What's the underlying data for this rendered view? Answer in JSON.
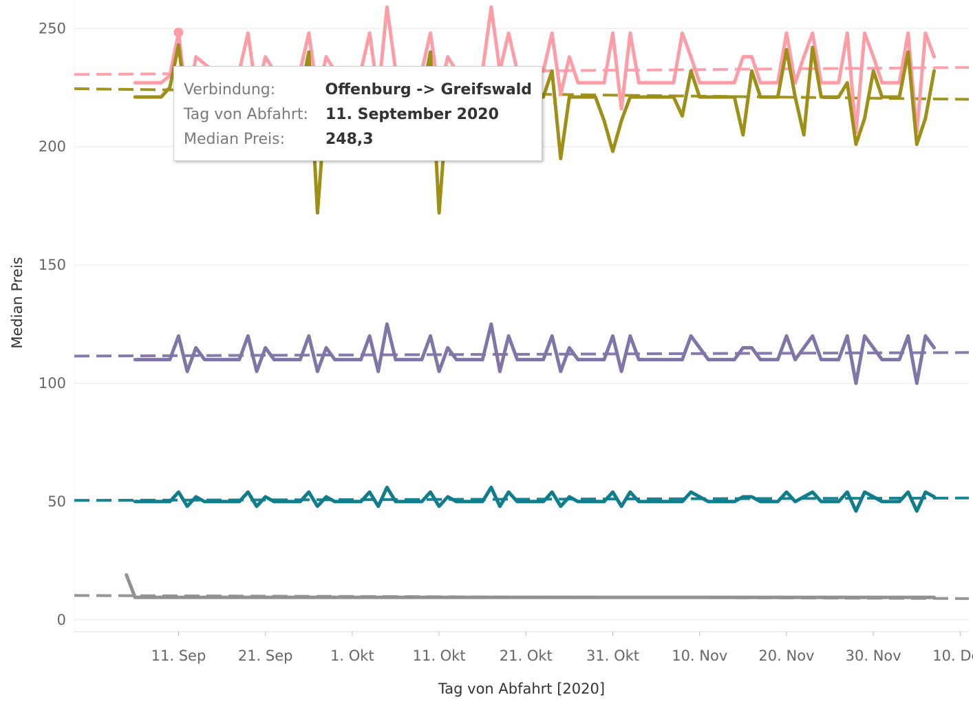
{
  "chart_data": {
    "type": "line",
    "xlabel": "Tag von Abfahrt [2020]",
    "ylabel": "Median Preis",
    "ylim": [
      -5,
      262
    ],
    "yticks": [
      0,
      50,
      100,
      150,
      200,
      250
    ],
    "ytick_labels": [
      "0",
      "50",
      "100",
      "150",
      "200",
      "250"
    ],
    "x_domain": [
      "2020-08-30",
      "2020-12-11"
    ],
    "xticks": [
      "2020-09-11",
      "2020-09-21",
      "2020-10-01",
      "2020-10-11",
      "2020-10-21",
      "2020-10-31",
      "2020-11-10",
      "2020-11-20",
      "2020-11-30",
      "2020-12-10"
    ],
    "xtick_labels": [
      "11. Sep",
      "21. Sep",
      "1. Okt",
      "11. Okt",
      "21. Okt",
      "31. Okt",
      "10. Nov",
      "20. Nov",
      "30. Nov",
      "10. Dez"
    ],
    "grid": true,
    "legend": "none",
    "series": [
      {
        "color": "#ff9da7",
        "points": [
          [
            "2020-09-06",
            227
          ],
          [
            "2020-09-09",
            227
          ],
          [
            "2020-09-10",
            230
          ],
          [
            "2020-09-11",
            248.3
          ],
          [
            "2020-09-12",
            216
          ],
          [
            "2020-09-13",
            238
          ],
          [
            "2020-09-15",
            232
          ],
          [
            "2020-09-18",
            232
          ],
          [
            "2020-09-19",
            248
          ],
          [
            "2020-09-20",
            222
          ],
          [
            "2020-09-21",
            238
          ],
          [
            "2020-09-22",
            232
          ],
          [
            "2020-09-25",
            232
          ],
          [
            "2020-09-26",
            248
          ],
          [
            "2020-09-27",
            222
          ],
          [
            "2020-09-28",
            238
          ],
          [
            "2020-09-29",
            232
          ],
          [
            "2020-10-02",
            232
          ],
          [
            "2020-10-03",
            248
          ],
          [
            "2020-10-04",
            222
          ],
          [
            "2020-10-05",
            259
          ],
          [
            "2020-10-06",
            232
          ],
          [
            "2020-10-09",
            232
          ],
          [
            "2020-10-10",
            248
          ],
          [
            "2020-10-11",
            222
          ],
          [
            "2020-10-12",
            238
          ],
          [
            "2020-10-13",
            232
          ],
          [
            "2020-10-16",
            232
          ],
          [
            "2020-10-17",
            259
          ],
          [
            "2020-10-18",
            232
          ],
          [
            "2020-10-19",
            248
          ],
          [
            "2020-10-20",
            232
          ],
          [
            "2020-10-23",
            232
          ],
          [
            "2020-10-24",
            248
          ],
          [
            "2020-10-25",
            222
          ],
          [
            "2020-10-26",
            238
          ],
          [
            "2020-10-27",
            227
          ],
          [
            "2020-10-30",
            227
          ],
          [
            "2020-10-31",
            248
          ],
          [
            "2020-11-01",
            216
          ],
          [
            "2020-11-02",
            248
          ],
          [
            "2020-11-03",
            227
          ],
          [
            "2020-11-07",
            227
          ],
          [
            "2020-11-08",
            248
          ],
          [
            "2020-11-09",
            238
          ],
          [
            "2020-11-10",
            227
          ],
          [
            "2020-11-13",
            227
          ],
          [
            "2020-11-14",
            227
          ],
          [
            "2020-11-15",
            238
          ],
          [
            "2020-11-16",
            238
          ],
          [
            "2020-11-17",
            227
          ],
          [
            "2020-11-19",
            227
          ],
          [
            "2020-11-20",
            248
          ],
          [
            "2020-11-21",
            227
          ],
          [
            "2020-11-22",
            238
          ],
          [
            "2020-11-23",
            248
          ],
          [
            "2020-11-24",
            227
          ],
          [
            "2020-11-26",
            227
          ],
          [
            "2020-11-27",
            248
          ],
          [
            "2020-11-28",
            206
          ],
          [
            "2020-11-29",
            248
          ],
          [
            "2020-11-30",
            238
          ],
          [
            "2020-12-01",
            227
          ],
          [
            "2020-12-03",
            227
          ],
          [
            "2020-12-04",
            248
          ],
          [
            "2020-12-05",
            206
          ],
          [
            "2020-12-06",
            248
          ],
          [
            "2020-12-07",
            238
          ]
        ],
        "trend": [
          [
            "2020-08-30",
            230.5
          ],
          [
            "2020-12-11",
            233.5
          ]
        ]
      },
      {
        "color": "#9d8f17",
        "points": [
          [
            "2020-09-06",
            221
          ],
          [
            "2020-09-08",
            221
          ],
          [
            "2020-09-09",
            221
          ],
          [
            "2020-09-10",
            225
          ],
          [
            "2020-09-11",
            243
          ],
          [
            "2020-09-12",
            214
          ],
          [
            "2020-09-13",
            221
          ],
          [
            "2020-09-25",
            221
          ],
          [
            "2020-09-26",
            240
          ],
          [
            "2020-09-27",
            172
          ],
          [
            "2020-09-28",
            221
          ],
          [
            "2020-10-08",
            221
          ],
          [
            "2020-10-09",
            221
          ],
          [
            "2020-10-10",
            240
          ],
          [
            "2020-10-11",
            172
          ],
          [
            "2020-10-12",
            221
          ],
          [
            "2020-10-22",
            221
          ],
          [
            "2020-10-23",
            221
          ],
          [
            "2020-10-24",
            232
          ],
          [
            "2020-10-25",
            195
          ],
          [
            "2020-10-26",
            221
          ],
          [
            "2020-10-28",
            221
          ],
          [
            "2020-10-29",
            221
          ],
          [
            "2020-10-30",
            211
          ],
          [
            "2020-10-31",
            198
          ],
          [
            "2020-11-01",
            211
          ],
          [
            "2020-11-02",
            221
          ],
          [
            "2020-11-07",
            221
          ],
          [
            "2020-11-08",
            213
          ],
          [
            "2020-11-09",
            232
          ],
          [
            "2020-11-10",
            221
          ],
          [
            "2020-11-14",
            221
          ],
          [
            "2020-11-15",
            205
          ],
          [
            "2020-11-16",
            232
          ],
          [
            "2020-11-17",
            221
          ],
          [
            "2020-11-19",
            221
          ],
          [
            "2020-11-20",
            241
          ],
          [
            "2020-11-21",
            221
          ],
          [
            "2020-11-22",
            205
          ],
          [
            "2020-11-23",
            242
          ],
          [
            "2020-11-24",
            221
          ],
          [
            "2020-11-26",
            221
          ],
          [
            "2020-11-27",
            227
          ],
          [
            "2020-11-28",
            201
          ],
          [
            "2020-11-29",
            212
          ],
          [
            "2020-11-30",
            232
          ],
          [
            "2020-12-01",
            221
          ],
          [
            "2020-12-03",
            221
          ],
          [
            "2020-12-04",
            240
          ],
          [
            "2020-12-05",
            201
          ],
          [
            "2020-12-06",
            212
          ],
          [
            "2020-12-07",
            232
          ]
        ],
        "trend": [
          [
            "2020-08-30",
            224.5
          ],
          [
            "2020-12-11",
            220
          ]
        ]
      },
      {
        "color": "#8074a8",
        "points": [
          [
            "2020-09-06",
            110
          ],
          [
            "2020-09-08",
            110
          ],
          [
            "2020-09-09",
            110
          ],
          [
            "2020-09-10",
            110
          ],
          [
            "2020-09-11",
            120
          ],
          [
            "2020-09-12",
            105
          ],
          [
            "2020-09-13",
            115
          ],
          [
            "2020-09-14",
            110
          ],
          [
            "2020-09-18",
            110
          ],
          [
            "2020-09-19",
            120
          ],
          [
            "2020-09-20",
            105
          ],
          [
            "2020-09-21",
            115
          ],
          [
            "2020-09-22",
            110
          ],
          [
            "2020-09-25",
            110
          ],
          [
            "2020-09-26",
            120
          ],
          [
            "2020-09-27",
            105
          ],
          [
            "2020-09-28",
            115
          ],
          [
            "2020-09-29",
            110
          ],
          [
            "2020-10-02",
            110
          ],
          [
            "2020-10-03",
            120
          ],
          [
            "2020-10-04",
            105
          ],
          [
            "2020-10-05",
            125
          ],
          [
            "2020-10-06",
            110
          ],
          [
            "2020-10-09",
            110
          ],
          [
            "2020-10-10",
            120
          ],
          [
            "2020-10-11",
            105
          ],
          [
            "2020-10-12",
            115
          ],
          [
            "2020-10-13",
            110
          ],
          [
            "2020-10-16",
            110
          ],
          [
            "2020-10-17",
            125
          ],
          [
            "2020-10-18",
            105
          ],
          [
            "2020-10-19",
            120
          ],
          [
            "2020-10-20",
            110
          ],
          [
            "2020-10-23",
            110
          ],
          [
            "2020-10-24",
            120
          ],
          [
            "2020-10-25",
            105
          ],
          [
            "2020-10-26",
            115
          ],
          [
            "2020-10-27",
            110
          ],
          [
            "2020-10-30",
            110
          ],
          [
            "2020-10-31",
            120
          ],
          [
            "2020-11-01",
            105
          ],
          [
            "2020-11-02",
            120
          ],
          [
            "2020-11-03",
            110
          ],
          [
            "2020-11-08",
            110
          ],
          [
            "2020-11-09",
            120
          ],
          [
            "2020-11-10",
            115
          ],
          [
            "2020-11-11",
            110
          ],
          [
            "2020-11-14",
            110
          ],
          [
            "2020-11-15",
            115
          ],
          [
            "2020-11-16",
            115
          ],
          [
            "2020-11-17",
            110
          ],
          [
            "2020-11-19",
            110
          ],
          [
            "2020-11-20",
            120
          ],
          [
            "2020-11-21",
            110
          ],
          [
            "2020-11-22",
            115
          ],
          [
            "2020-11-23",
            120
          ],
          [
            "2020-11-24",
            110
          ],
          [
            "2020-11-26",
            110
          ],
          [
            "2020-11-27",
            120
          ],
          [
            "2020-11-28",
            100
          ],
          [
            "2020-11-29",
            120
          ],
          [
            "2020-11-30",
            115
          ],
          [
            "2020-12-01",
            110
          ],
          [
            "2020-12-03",
            110
          ],
          [
            "2020-12-04",
            120
          ],
          [
            "2020-12-05",
            100
          ],
          [
            "2020-12-06",
            120
          ],
          [
            "2020-12-07",
            115
          ]
        ],
        "trend": [
          [
            "2020-08-30",
            111.5
          ],
          [
            "2020-12-11",
            113
          ]
        ]
      },
      {
        "color": "#0f7d8c",
        "points": [
          [
            "2020-09-06",
            50
          ],
          [
            "2020-09-08",
            50
          ],
          [
            "2020-09-10",
            50
          ],
          [
            "2020-09-11",
            54
          ],
          [
            "2020-09-12",
            48
          ],
          [
            "2020-09-13",
            52
          ],
          [
            "2020-09-14",
            50
          ],
          [
            "2020-09-18",
            50
          ],
          [
            "2020-09-19",
            54
          ],
          [
            "2020-09-20",
            48
          ],
          [
            "2020-09-21",
            52
          ],
          [
            "2020-09-22",
            50
          ],
          [
            "2020-09-25",
            50
          ],
          [
            "2020-09-26",
            54
          ],
          [
            "2020-09-27",
            48
          ],
          [
            "2020-09-28",
            52
          ],
          [
            "2020-09-29",
            50
          ],
          [
            "2020-10-02",
            50
          ],
          [
            "2020-10-03",
            54
          ],
          [
            "2020-10-04",
            48
          ],
          [
            "2020-10-05",
            56
          ],
          [
            "2020-10-06",
            50
          ],
          [
            "2020-10-09",
            50
          ],
          [
            "2020-10-10",
            54
          ],
          [
            "2020-10-11",
            48
          ],
          [
            "2020-10-12",
            52
          ],
          [
            "2020-10-13",
            50
          ],
          [
            "2020-10-16",
            50
          ],
          [
            "2020-10-17",
            56
          ],
          [
            "2020-10-18",
            48
          ],
          [
            "2020-10-19",
            54
          ],
          [
            "2020-10-20",
            50
          ],
          [
            "2020-10-23",
            50
          ],
          [
            "2020-10-24",
            54
          ],
          [
            "2020-10-25",
            48
          ],
          [
            "2020-10-26",
            52
          ],
          [
            "2020-10-27",
            50
          ],
          [
            "2020-10-30",
            50
          ],
          [
            "2020-10-31",
            54
          ],
          [
            "2020-11-01",
            48
          ],
          [
            "2020-11-02",
            54
          ],
          [
            "2020-11-03",
            50
          ],
          [
            "2020-11-08",
            50
          ],
          [
            "2020-11-09",
            54
          ],
          [
            "2020-11-10",
            52
          ],
          [
            "2020-11-11",
            50
          ],
          [
            "2020-11-14",
            50
          ],
          [
            "2020-11-15",
            52
          ],
          [
            "2020-11-16",
            52
          ],
          [
            "2020-11-17",
            50
          ],
          [
            "2020-11-19",
            50
          ],
          [
            "2020-11-20",
            54
          ],
          [
            "2020-11-21",
            50
          ],
          [
            "2020-11-22",
            52
          ],
          [
            "2020-11-23",
            54
          ],
          [
            "2020-11-24",
            50
          ],
          [
            "2020-11-26",
            50
          ],
          [
            "2020-11-27",
            54
          ],
          [
            "2020-11-28",
            46
          ],
          [
            "2020-11-29",
            54
          ],
          [
            "2020-11-30",
            52
          ],
          [
            "2020-12-01",
            50
          ],
          [
            "2020-12-03",
            50
          ],
          [
            "2020-12-04",
            54
          ],
          [
            "2020-12-05",
            46
          ],
          [
            "2020-12-06",
            54
          ],
          [
            "2020-12-07",
            52
          ]
        ],
        "trend": [
          [
            "2020-08-30",
            50.5
          ],
          [
            "2020-12-11",
            51.5
          ]
        ]
      },
      {
        "color": "#919191",
        "points": [
          [
            "2020-09-05",
            19
          ],
          [
            "2020-09-06",
            9.5
          ],
          [
            "2020-09-10",
            9.5
          ],
          [
            "2020-12-07",
            9.5
          ]
        ],
        "trend": [
          [
            "2020-08-30",
            10.3
          ],
          [
            "2020-12-11",
            9
          ]
        ]
      }
    ],
    "highlight": {
      "series_index": 0,
      "x": "2020-09-11",
      "y": 248.3
    }
  },
  "tooltip": {
    "rows": [
      {
        "key": "Verbindung:",
        "value": "Offenburg -> Greifswald"
      },
      {
        "key": "Tag von Abfahrt:",
        "value": "11. September 2020"
      },
      {
        "key": "Median Preis:",
        "value": "248,3"
      }
    ]
  }
}
